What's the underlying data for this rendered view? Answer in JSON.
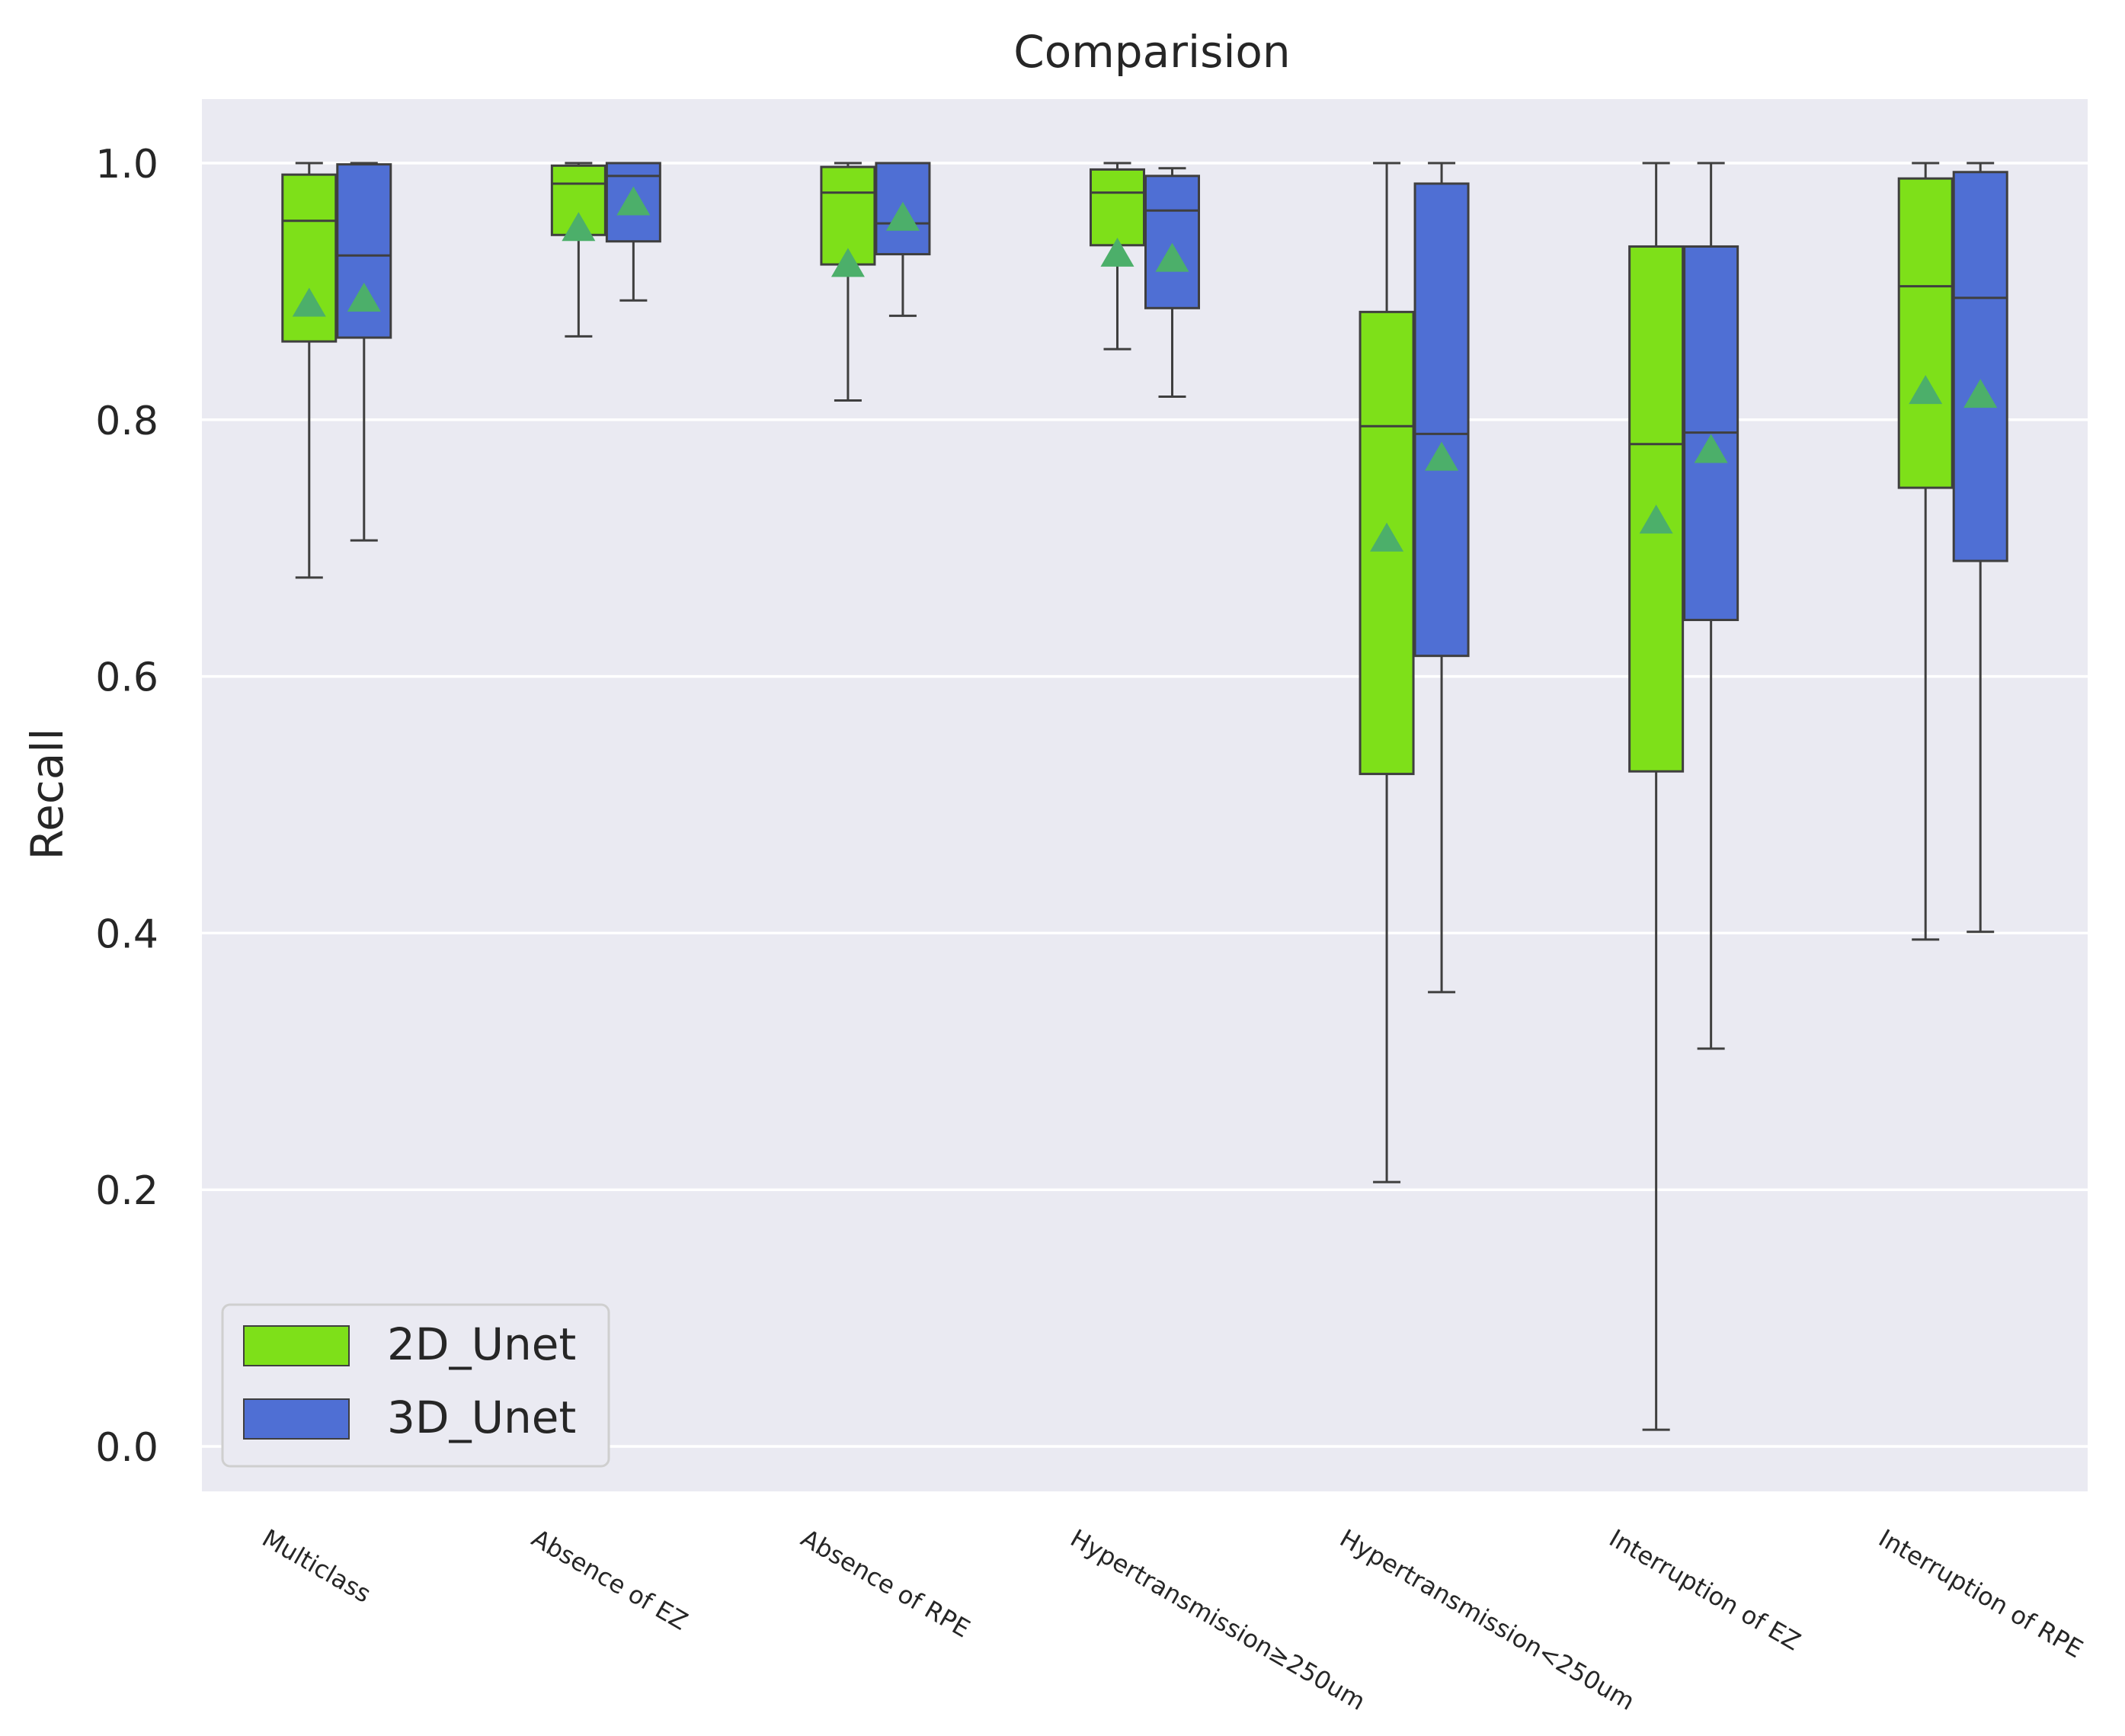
{
  "chart_data": {
    "type": "box",
    "title": "Comparision",
    "xlabel": "",
    "ylabel": "Recall",
    "ylim": [
      -0.035,
      1.1
    ],
    "yticks": [
      0.0,
      0.2,
      0.4,
      0.6,
      0.8,
      1.0
    ],
    "ytick_labels": [
      "0.0",
      "0.2",
      "0.4",
      "0.6",
      "0.8",
      "1.0"
    ],
    "grid": true,
    "legend_position": "lower-left",
    "categories": [
      "Multiclass",
      "Absence of EZ",
      "Absence of RPE",
      "Hypertransmission≥250um",
      "Hypertransmission<250um",
      "Interruption of EZ",
      "Interruption of RPE"
    ],
    "series": [
      {
        "name": "2D_Unet",
        "color": "#7ee019",
        "boxes": [
          {
            "whislo": 0.677,
            "q1": 0.861,
            "med": 0.955,
            "q3": 0.991,
            "whishi": 1.0,
            "mean": 0.891
          },
          {
            "whislo": 0.865,
            "q1": 0.944,
            "med": 0.984,
            "q3": 0.998,
            "whishi": 1.0,
            "mean": 0.95
          },
          {
            "whislo": 0.815,
            "q1": 0.921,
            "med": 0.977,
            "q3": 0.997,
            "whishi": 1.0,
            "mean": 0.922
          },
          {
            "whislo": 0.855,
            "q1": 0.936,
            "med": 0.977,
            "q3": 0.995,
            "whishi": 1.0,
            "mean": 0.93
          },
          {
            "whislo": 0.206,
            "q1": 0.524,
            "med": 0.795,
            "q3": 0.884,
            "whishi": 1.0,
            "mean": 0.708
          },
          {
            "whislo": 0.013,
            "q1": 0.526,
            "med": 0.781,
            "q3": 0.935,
            "whishi": 1.0,
            "mean": 0.722
          },
          {
            "whislo": 0.395,
            "q1": 0.747,
            "med": 0.904,
            "q3": 0.988,
            "whishi": 1.0,
            "mean": 0.823
          }
        ]
      },
      {
        "name": "3D_Unet",
        "color": "#4f6fd4",
        "boxes": [
          {
            "whislo": 0.706,
            "q1": 0.864,
            "med": 0.928,
            "q3": 0.999,
            "whishi": 1.0,
            "mean": 0.895
          },
          {
            "whislo": 0.893,
            "q1": 0.939,
            "med": 0.99,
            "q3": 1.0,
            "whishi": 1.0,
            "mean": 0.97
          },
          {
            "whislo": 0.881,
            "q1": 0.929,
            "med": 0.953,
            "q3": 1.0,
            "whishi": 1.0,
            "mean": 0.958
          },
          {
            "whislo": 0.818,
            "q1": 0.887,
            "med": 0.963,
            "q3": 0.99,
            "whishi": 0.996,
            "mean": 0.926
          },
          {
            "whislo": 0.354,
            "q1": 0.616,
            "med": 0.789,
            "q3": 0.984,
            "whishi": 1.0,
            "mean": 0.771
          },
          {
            "whislo": 0.31,
            "q1": 0.644,
            "med": 0.79,
            "q3": 0.935,
            "whishi": 1.0,
            "mean": 0.777
          },
          {
            "whislo": 0.401,
            "q1": 0.69,
            "med": 0.895,
            "q3": 0.993,
            "whishi": 1.0,
            "mean": 0.82
          }
        ]
      }
    ],
    "colors": {
      "plot_background": "#eaeaf2",
      "grid": "#ffffff",
      "box_edge": "#3f3f3f",
      "mean_marker": "#4caf6a"
    }
  }
}
